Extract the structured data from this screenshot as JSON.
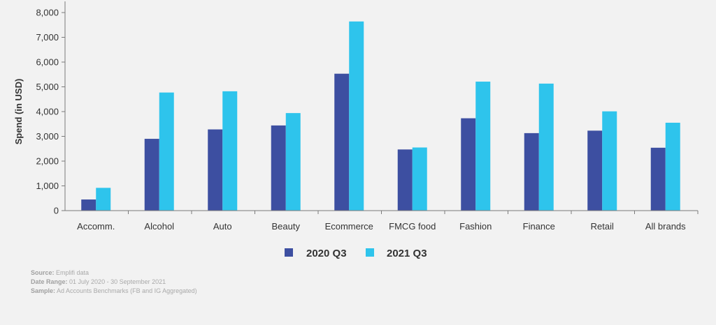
{
  "chart_data": {
    "type": "bar",
    "title": "",
    "xlabel": "",
    "ylabel": "Spend (in USD)",
    "ylim": [
      0,
      8000
    ],
    "yticks": [
      0,
      1000,
      2000,
      3000,
      4000,
      5000,
      6000,
      7000,
      8000
    ],
    "ytick_labels": [
      "0",
      "1,000",
      "2,000",
      "3,000",
      "4,000",
      "5,000",
      "6,000",
      "7,000",
      "8,000"
    ],
    "categories": [
      "Accomm.",
      "Alcohol",
      "Auto",
      "Beauty",
      "Ecommerce",
      "FMCG food",
      "Fashion",
      "Finance",
      "Retail",
      "All brands"
    ],
    "series": [
      {
        "name": "2020 Q3",
        "color": "#3d4fa1",
        "values": [
          450,
          2900,
          3280,
          3440,
          5530,
          2470,
          3730,
          3130,
          3230,
          2540
        ]
      },
      {
        "name": "2021 Q3",
        "color": "#2ec4ec",
        "values": [
          920,
          4770,
          4820,
          3940,
          7640,
          2550,
          5210,
          5130,
          4010,
          3550
        ]
      }
    ],
    "legend_position": "bottom-center",
    "grid": false
  },
  "footer": {
    "source_label": "Source:",
    "source_value": "Emplifi data",
    "date_label": "Date Range:",
    "date_value": "01 July 2020 - 30 September 2021",
    "sample_label": "Sample:",
    "sample_value": "Ad Accounts Benchmarks (FB and IG Aggregated)"
  },
  "colors": {
    "axis": "#7a7a7a",
    "text": "#333333",
    "background": "#f2f2f2"
  }
}
